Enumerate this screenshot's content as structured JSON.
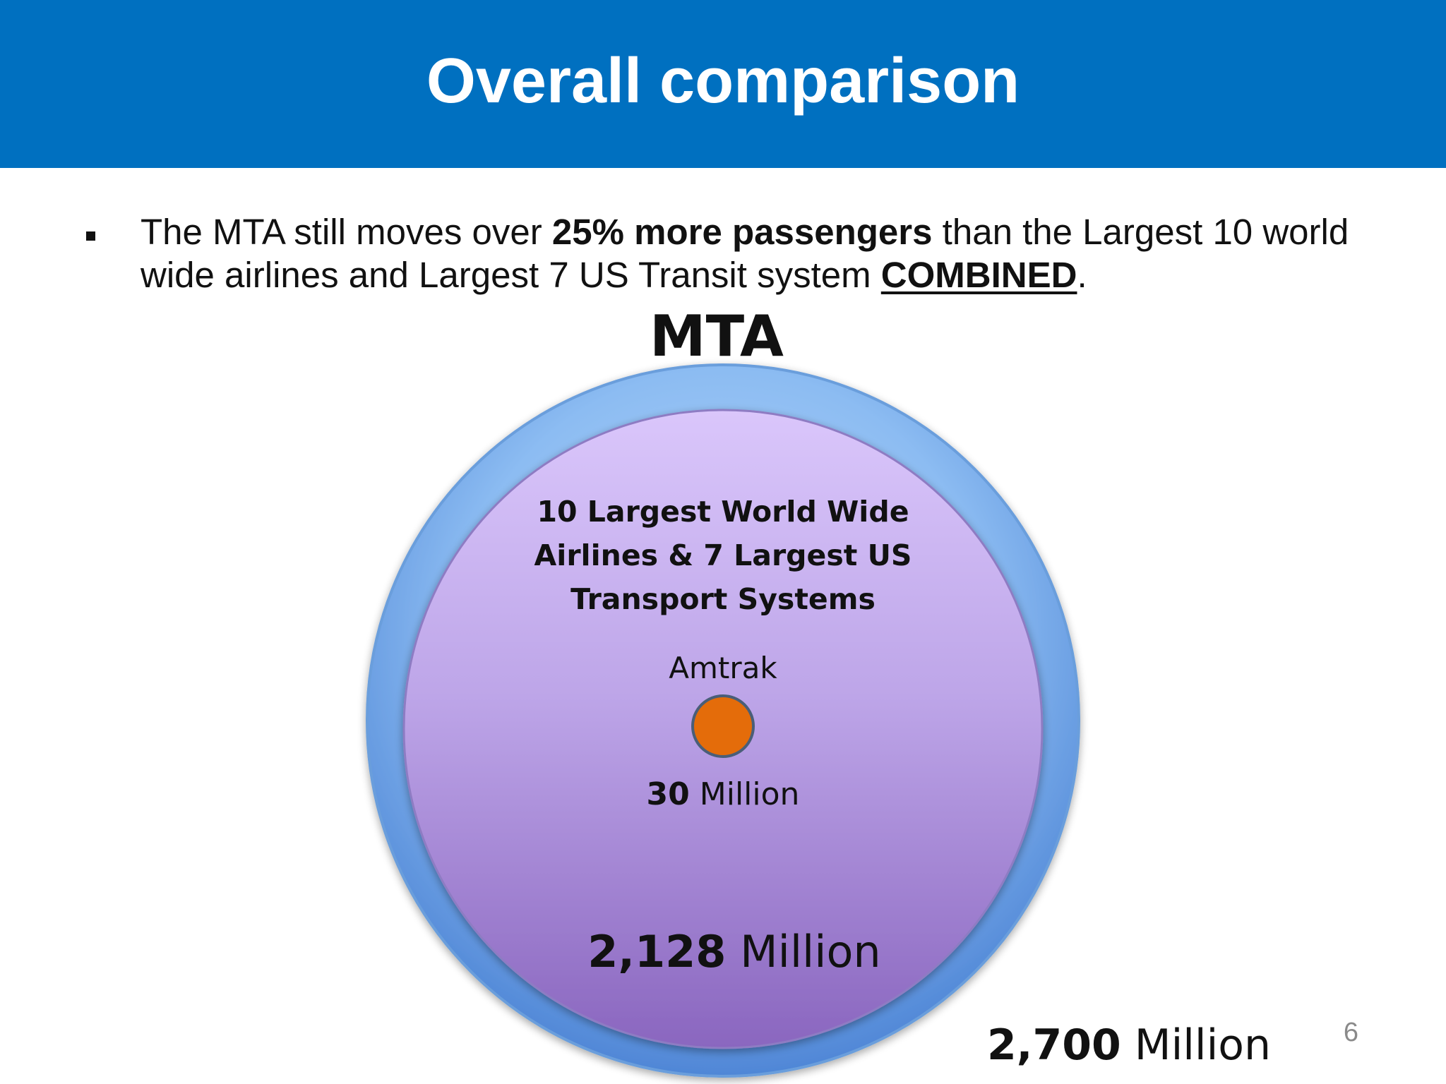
{
  "slide": {
    "title": "Overall comparison",
    "bullet": {
      "part1": "The MTA still moves over ",
      "bold1": "25% more passengers",
      "part2": " than the Largest 10 world wide airlines and Largest 7 US Transit system ",
      "underlined": "COMBINED",
      "part3": "."
    },
    "page_number": "6"
  },
  "diagram": {
    "outer": {
      "label": "MTA",
      "value_number": "2,700",
      "value_unit": " Million",
      "value": 2700,
      "color": "#7fb3ec"
    },
    "middle": {
      "label": "10 Largest World Wide Airlines & 7 Largest US Transport Systems",
      "value_number": "2,128",
      "value_unit": " Million",
      "value": 2128,
      "color": "#b39ddf"
    },
    "inner": {
      "label": "Amtrak",
      "value_number": "30",
      "value_unit": " Million",
      "value": 30,
      "color": "#e46c0a"
    }
  },
  "colors": {
    "header": "#0070c0",
    "header_text": "#ffffff",
    "page_number": "#8a8a8a"
  }
}
